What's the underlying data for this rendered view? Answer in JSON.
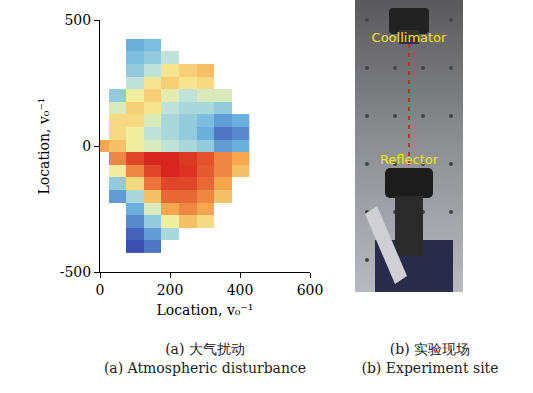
{
  "chart_data": {
    "type": "heatmap",
    "x_label": "Location, v₀⁻¹",
    "y_label": "Location, v₀⁻¹",
    "x": [
      0,
      50,
      100,
      150,
      200,
      250,
      300,
      350,
      400
    ],
    "y": [
      -400,
      -350,
      -300,
      -250,
      -200,
      -150,
      -100,
      -50,
      0,
      50,
      100,
      150,
      200,
      250,
      300,
      350,
      400
    ],
    "z": [
      [
        null,
        null,
        0.1,
        0.2,
        null,
        null,
        null,
        null,
        null
      ],
      [
        null,
        null,
        0.15,
        0.3,
        0.5,
        null,
        null,
        null,
        null
      ],
      [
        null,
        null,
        0.25,
        0.45,
        0.65,
        0.75,
        0.7,
        null,
        null
      ],
      [
        null,
        null,
        0.35,
        0.6,
        0.8,
        0.85,
        0.8,
        null,
        null
      ],
      [
        null,
        0.3,
        0.5,
        0.75,
        0.9,
        0.9,
        0.85,
        0.75,
        null
      ],
      [
        null,
        0.45,
        0.7,
        0.88,
        0.95,
        0.95,
        0.9,
        0.8,
        null
      ],
      [
        null,
        0.65,
        0.85,
        0.95,
        1.0,
        0.98,
        0.92,
        0.85,
        0.75
      ],
      [
        null,
        0.85,
        0.95,
        1.0,
        1.0,
        0.97,
        0.93,
        0.85,
        0.8
      ],
      [
        0.8,
        0.75,
        0.65,
        0.6,
        0.55,
        0.5,
        0.45,
        0.3,
        0.35
      ],
      [
        null,
        0.7,
        0.65,
        0.55,
        0.5,
        0.45,
        0.35,
        0.2,
        0.25
      ],
      [
        null,
        0.7,
        0.7,
        0.6,
        0.5,
        0.45,
        0.4,
        0.3,
        0.35
      ],
      [
        null,
        0.6,
        0.72,
        0.68,
        0.55,
        0.5,
        0.5,
        0.45,
        null
      ],
      [
        null,
        0.45,
        0.65,
        0.72,
        0.62,
        0.55,
        0.6,
        0.6,
        null
      ],
      [
        null,
        null,
        0.55,
        0.68,
        0.72,
        0.68,
        0.7,
        null,
        null
      ],
      [
        null,
        null,
        0.45,
        0.55,
        0.68,
        0.72,
        0.75,
        null,
        null
      ],
      [
        null,
        null,
        0.4,
        0.45,
        0.55,
        null,
        null,
        null,
        null
      ],
      [
        null,
        null,
        0.35,
        0.4,
        null,
        null,
        null,
        null,
        null
      ]
    ],
    "xlim": [
      0,
      600
    ],
    "xticks": [
      0,
      200,
      400,
      600
    ],
    "ylim": [
      -500,
      500
    ],
    "yticks": [
      -500,
      0,
      500
    ],
    "caption": [
      "(a) 大气扰动",
      "(a) Atmospheric disturbance"
    ]
  },
  "photo": {
    "labels": [
      "Coollimator",
      "Reflector"
    ],
    "caption": [
      "(b) 实验现场",
      "(b) Experiment site"
    ]
  }
}
